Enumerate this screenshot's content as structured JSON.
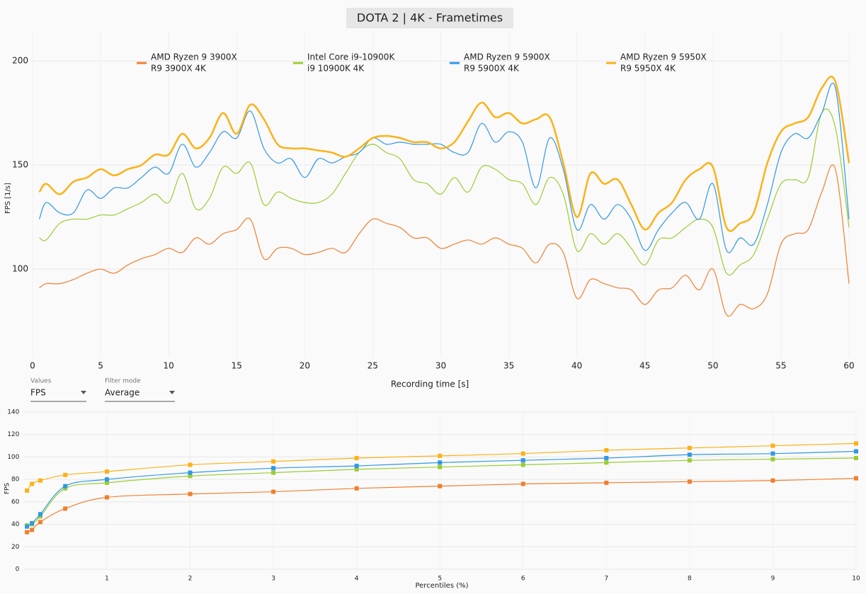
{
  "chart_data": [
    {
      "type": "line",
      "title": "DOTA 2 | 4K - Frametimes",
      "x_label": "Recording time [s]",
      "y_label": "FPS [1/s]",
      "x": [
        0.5,
        1,
        2,
        3,
        4,
        5,
        6,
        7,
        8,
        9,
        10,
        11,
        12,
        13,
        14,
        15,
        16,
        17,
        18,
        19,
        20,
        21,
        22,
        23,
        24,
        25,
        26,
        27,
        28,
        29,
        30,
        31,
        32,
        33,
        34,
        35,
        36,
        37,
        38,
        39,
        40,
        41,
        42,
        43,
        44,
        45,
        46,
        47,
        48,
        49,
        50,
        51,
        52,
        53,
        54,
        55,
        56,
        57,
        58,
        59,
        60
      ],
      "xlim": [
        0,
        60
      ],
      "ylim": [
        57.5,
        214
      ],
      "xticks": [
        0,
        5,
        10,
        15,
        20,
        25,
        30,
        35,
        40,
        45,
        50,
        55,
        60
      ],
      "yticks": [
        100,
        150,
        200
      ],
      "grid": true,
      "legend": "top",
      "series": [
        {
          "name": "AMD Ryzen 9 3900X",
          "subtitle": "R9 3900X 4K",
          "color": "#f07f2f",
          "line_width": 1.2,
          "values": [
            91,
            93,
            93,
            95,
            98,
            100,
            98,
            102,
            105,
            107,
            110,
            108,
            115,
            112,
            117,
            119,
            124,
            105,
            110,
            110,
            107,
            108,
            110,
            108,
            117,
            124,
            122,
            120,
            115,
            115,
            110,
            112,
            114,
            112,
            115,
            112,
            110,
            103,
            112,
            108,
            86,
            95,
            93,
            91,
            90,
            83,
            90,
            91,
            97,
            90,
            100,
            78,
            83,
            81,
            88,
            112,
            117,
            119,
            137,
            148,
            93
          ]
        },
        {
          "name": "Intel Core i9-10900K",
          "subtitle": "i9 10900K 4K",
          "color": "#9acd32",
          "line_width": 1.2,
          "values": [
            115,
            114,
            122,
            124,
            124,
            126,
            126,
            129,
            132,
            136,
            132,
            146,
            129,
            134,
            149,
            146,
            151,
            131,
            137,
            134,
            132,
            132,
            136,
            146,
            156,
            160,
            156,
            153,
            143,
            141,
            136,
            144,
            137,
            149,
            148,
            143,
            141,
            131,
            144,
            136,
            109,
            117,
            112,
            117,
            110,
            102,
            114,
            115,
            120,
            124,
            120,
            98,
            102,
            107,
            124,
            141,
            143,
            144,
            175,
            168,
            120
          ]
        },
        {
          "name": "AMD Ryzen 9 5900X",
          "subtitle": "R9 5900X 4K",
          "color": "#3097e6",
          "line_width": 1.2,
          "values": [
            124,
            132,
            127,
            127,
            138,
            134,
            139,
            139,
            144,
            149,
            146,
            160,
            149,
            156,
            166,
            163,
            176,
            158,
            151,
            153,
            144,
            153,
            151,
            154,
            156,
            163,
            160,
            161,
            160,
            160,
            160,
            156,
            156,
            170,
            161,
            166,
            161,
            139,
            163,
            148,
            119,
            131,
            124,
            131,
            124,
            109,
            119,
            127,
            132,
            124,
            141,
            109,
            115,
            112,
            131,
            156,
            165,
            163,
            175,
            187,
            124
          ]
        },
        {
          "name": "AMD Ryzen 9 5950X",
          "subtitle": "R9 5950X 4K",
          "color": "#fbb217",
          "line_width": 2.5,
          "values": [
            137,
            141,
            136,
            142,
            144,
            148,
            145,
            148,
            150,
            155,
            155,
            165,
            158,
            163,
            175,
            165,
            179,
            172,
            160,
            158,
            158,
            157,
            156,
            154,
            158,
            163,
            164,
            163,
            161,
            161,
            158,
            161,
            171,
            180,
            173,
            175,
            170,
            172,
            173,
            151,
            125,
            146,
            141,
            143,
            131,
            119,
            127,
            132,
            143,
            148,
            149,
            120,
            122,
            127,
            151,
            166,
            170,
            173,
            187,
            190,
            151
          ]
        }
      ]
    },
    {
      "type": "line",
      "x_label": "Percentiles (%)",
      "y_label": "FPS",
      "markers": true,
      "x": [
        0.04,
        0.1,
        0.2,
        0.5,
        1,
        2,
        3,
        4,
        5,
        6,
        7,
        8,
        9,
        10
      ],
      "xlim": [
        0,
        10
      ],
      "ylim": [
        0,
        140
      ],
      "xticks": [
        1,
        2,
        3,
        4,
        5,
        6,
        7,
        8,
        9,
        10
      ],
      "yticks": [
        0,
        20,
        40,
        60,
        80,
        100,
        120,
        140
      ],
      "grid": true,
      "series": [
        {
          "color": "#f07f2f",
          "values": [
            33,
            35,
            42,
            54,
            64,
            67,
            69,
            72,
            74,
            76,
            77,
            78,
            79,
            81
          ]
        },
        {
          "color": "#9acd32",
          "values": [
            39,
            40,
            47,
            72,
            77,
            83,
            86,
            89,
            91,
            93,
            95,
            97,
            98,
            99
          ]
        },
        {
          "color": "#3097e6",
          "values": [
            38,
            41,
            49,
            74,
            80,
            86,
            90,
            92,
            95,
            97,
            99,
            102,
            103,
            105
          ]
        },
        {
          "color": "#fbb217",
          "values": [
            70,
            76,
            79,
            84,
            87,
            93,
            96,
            99,
            101,
            103,
            106,
            108,
            110,
            112
          ]
        }
      ]
    }
  ],
  "controls": [
    {
      "label": "Values",
      "value": "FPS"
    },
    {
      "label": "Filter mode",
      "value": "Average"
    }
  ]
}
